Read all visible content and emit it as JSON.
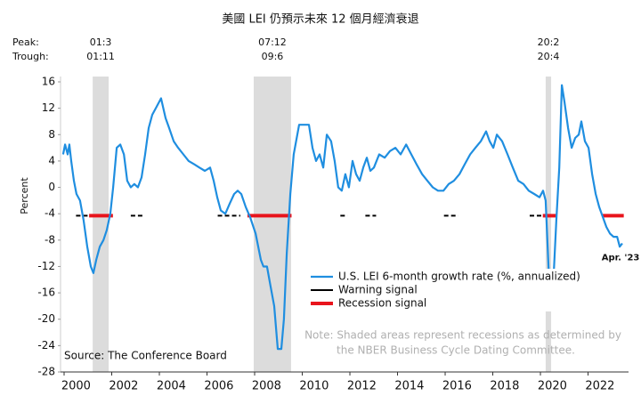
{
  "chart_data": {
    "type": "line",
    "title": "美國 LEI 仍預示未來 12 個月經濟衰退",
    "y_label": "Percent",
    "peak_label": "Peak:",
    "trough_label": "Trough:",
    "source": "Source: The Conference Board",
    "note_lines": [
      "Note: Shaded areas represent recessions as determined by",
      "the NBER Business Cycle Dating Committee."
    ],
    "end_label": "Apr. '23",
    "xlim": [
      1999.85,
      2023.7
    ],
    "ylim": [
      -28,
      16
    ],
    "xticks": [
      {
        "value": 2000,
        "label": "2000"
      },
      {
        "value": 2002,
        "label": "2002"
      },
      {
        "value": 2004,
        "label": "2004"
      },
      {
        "value": 2006,
        "label": "2006"
      },
      {
        "value": 2008,
        "label": "2008"
      },
      {
        "value": 2010,
        "label": "2010"
      },
      {
        "value": 2012,
        "label": "2012"
      },
      {
        "value": 2014,
        "label": "2014"
      },
      {
        "value": 2016,
        "label": "2016"
      },
      {
        "value": 2018,
        "label": "2018"
      },
      {
        "value": 2020,
        "label": "2020"
      },
      {
        "value": 2022,
        "label": "2022"
      }
    ],
    "yticks": [
      16,
      12,
      8,
      4,
      0,
      -4,
      -8,
      -12,
      -16,
      -20,
      -24,
      -28
    ],
    "grid": false,
    "recessions": [
      {
        "peak": "01:3",
        "trough": "01:11",
        "start": 2001.2,
        "end": 2001.87
      },
      {
        "peak": "07:12",
        "trough": "09:6",
        "start": 2007.96,
        "end": 2009.53
      },
      {
        "peak": "20:2",
        "trough": "20:4",
        "start": 2020.22,
        "end": 2020.45
      }
    ],
    "series": [
      {
        "name": "U.S. LEI 6-month growth rate (%, annualized)",
        "color": "#1f8ee0",
        "x": [
          1999.96,
          2000.04,
          2000.15,
          2000.22,
          2000.3,
          2000.41,
          2000.52,
          2000.67,
          2000.82,
          2000.97,
          2001.12,
          2001.23,
          2001.35,
          2001.5,
          2001.65,
          2001.79,
          2001.94,
          2002.06,
          2002.21,
          2002.36,
          2002.51,
          2002.65,
          2002.8,
          2002.95,
          2003.1,
          2003.25,
          2003.4,
          2003.55,
          2003.7,
          2003.85,
          2004.07,
          2004.26,
          2004.41,
          2004.6,
          2004.79,
          2005.01,
          2005.23,
          2005.46,
          2005.68,
          2005.91,
          2006.13,
          2006.28,
          2006.43,
          2006.58,
          2006.77,
          2006.95,
          2007.14,
          2007.29,
          2007.44,
          2007.63,
          2007.81,
          2008.04,
          2008.26,
          2008.37,
          2008.52,
          2008.67,
          2008.82,
          2008.97,
          2009.12,
          2009.23,
          2009.35,
          2009.5,
          2009.64,
          2009.87,
          2010.09,
          2010.28,
          2010.43,
          2010.58,
          2010.73,
          2010.88,
          2011.03,
          2011.21,
          2011.36,
          2011.51,
          2011.66,
          2011.81,
          2011.96,
          2012.11,
          2012.26,
          2012.41,
          2012.56,
          2012.71,
          2012.86,
          2013.01,
          2013.23,
          2013.46,
          2013.68,
          2013.91,
          2014.13,
          2014.36,
          2014.58,
          2014.8,
          2015.03,
          2015.25,
          2015.48,
          2015.7,
          2015.93,
          2016.15,
          2016.37,
          2016.6,
          2016.82,
          2017.05,
          2017.27,
          2017.5,
          2017.72,
          2017.87,
          2018.02,
          2018.17,
          2018.39,
          2018.62,
          2018.84,
          2019.07,
          2019.29,
          2019.51,
          2019.74,
          2019.96,
          2020.11,
          2020.22,
          2020.34,
          2020.45,
          2020.56,
          2020.67,
          2020.79,
          2020.9,
          2021.01,
          2021.16,
          2021.31,
          2021.46,
          2021.61,
          2021.72,
          2021.87,
          2022.02,
          2022.17,
          2022.32,
          2022.47,
          2022.62,
          2022.77,
          2022.92,
          2023.07,
          2023.22,
          2023.33,
          2023.44
        ],
        "values": [
          5,
          6.5,
          5,
          6.5,
          4,
          1,
          -1,
          -2,
          -5,
          -9,
          -12,
          -13,
          -11,
          -9,
          -8,
          -6.5,
          -4,
          0,
          6,
          6.5,
          5,
          1,
          0,
          0.5,
          0,
          1.5,
          5,
          9,
          11,
          12,
          13.5,
          10.5,
          9,
          7,
          6,
          5,
          4,
          3.5,
          3,
          2.5,
          3,
          1,
          -1.5,
          -3.5,
          -4,
          -2.5,
          -1,
          -0.5,
          -1,
          -3,
          -4.5,
          -7,
          -11,
          -12,
          -12,
          -15,
          -18,
          -24.5,
          -24.5,
          -20,
          -10,
          -1,
          5,
          9.5,
          9.5,
          9.5,
          6,
          4,
          5,
          3,
          8,
          7,
          4,
          0,
          -0.5,
          2,
          0,
          4,
          2,
          1,
          3,
          4.5,
          2.5,
          3,
          5,
          4.5,
          5.5,
          6,
          5,
          6.5,
          5,
          3.5,
          2,
          1,
          0,
          -0.5,
          -0.5,
          0.5,
          1,
          2,
          3.5,
          5,
          6,
          7,
          8.5,
          7,
          6,
          8,
          7,
          5,
          3,
          1,
          0.5,
          -0.5,
          -1,
          -1.5,
          -0.5,
          -2,
          -12,
          -18.5,
          -13,
          -5,
          3,
          15.5,
          13,
          9,
          6,
          7.5,
          8,
          10,
          7,
          6,
          2,
          -1,
          -3,
          -4.5,
          -6,
          -7,
          -7.5,
          -7.5,
          -9,
          -8.5
        ]
      }
    ],
    "signals": [
      {
        "name": "Warning signal",
        "color": "#000000",
        "value": -4.3,
        "periods": [
          [
            2000.5,
            2001.05
          ],
          [
            2002.8,
            2003.35
          ],
          [
            2006.45,
            2007.4
          ],
          [
            2011.6,
            2011.9
          ],
          [
            2012.65,
            2013.1
          ],
          [
            2015.95,
            2016.55
          ],
          [
            2019.55,
            2020.1
          ]
        ]
      },
      {
        "name": "Recession signal",
        "color": "#e8141c",
        "value": -4.3,
        "periods": [
          [
            2001.05,
            2002.05
          ],
          [
            2007.7,
            2009.55
          ],
          [
            2020.1,
            2020.65
          ],
          [
            2022.6,
            2023.5
          ]
        ]
      }
    ]
  }
}
